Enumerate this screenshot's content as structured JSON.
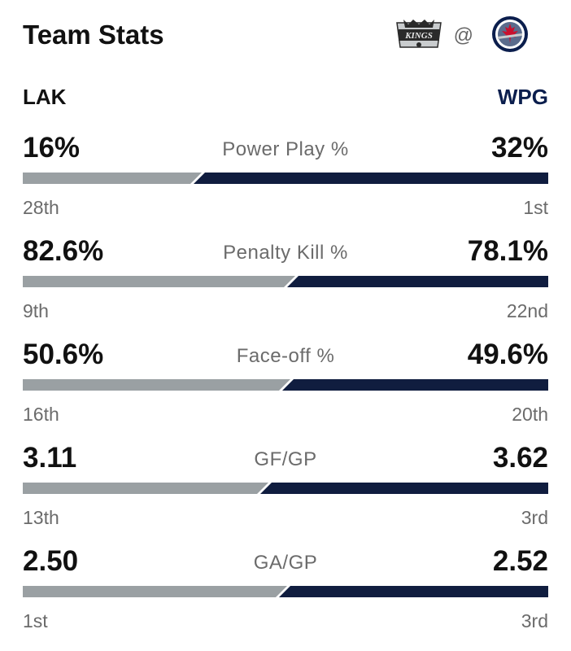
{
  "title": "Team Stats",
  "matchup": {
    "away_logo": "kings-logo",
    "at": "@",
    "home_logo": "jets-logo"
  },
  "teams": {
    "away": "LAK",
    "home": "WPG"
  },
  "colors": {
    "away_bar": "#9aa0a3",
    "home_bar": "#101d3f",
    "home_abbr": "#0b1e4d"
  },
  "stats": [
    {
      "label": "Power Play %",
      "away_value": "16%",
      "home_value": "32%",
      "away_rank": "28th",
      "home_rank": "1st",
      "away_share": 0.333
    },
    {
      "label": "Penalty Kill %",
      "away_value": "82.6%",
      "home_value": "78.1%",
      "away_rank": "9th",
      "home_rank": "22nd",
      "away_share": 0.514
    },
    {
      "label": "Face-off %",
      "away_value": "50.6%",
      "home_value": "49.6%",
      "away_rank": "16th",
      "home_rank": "20th",
      "away_share": 0.505
    },
    {
      "label": "GF/GP",
      "away_value": "3.11",
      "home_value": "3.62",
      "away_rank": "13th",
      "home_rank": "3rd",
      "away_share": 0.462
    },
    {
      "label": "GA/GP",
      "away_value": "2.50",
      "home_value": "2.52",
      "away_rank": "1st",
      "home_rank": "3rd",
      "away_share": 0.498
    }
  ]
}
